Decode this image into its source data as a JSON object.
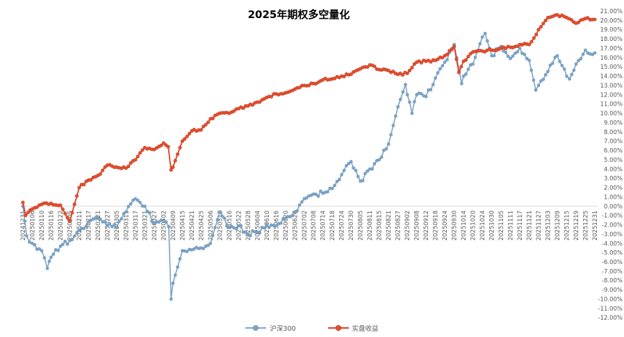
{
  "chart": {
    "background": "#FFFFFF",
    "zero_line_color": "#D9D9D9",
    "y_axis": {
      "max": 21,
      "min": -12,
      "step": 1,
      "decimals": 2,
      "suffix": "%",
      "label_color": "#595959"
    },
    "x_axis": {
      "label_color": "#595959"
    }
  },
  "chart_data": {
    "type": "line",
    "title": "2025年期权多空量化",
    "xlabel": "",
    "ylabel": "",
    "units": "percent",
    "ylim": [
      -12,
      21
    ],
    "y_tick_step": 1,
    "grid": "zero-axis-only",
    "legend_position": "bottom",
    "x": [
      "20241231",
      "20250106",
      "20250110",
      "20250116",
      "20250122",
      "20250205",
      "20250211",
      "20250217",
      "20250221",
      "20250227",
      "20250305",
      "20250311",
      "20250317",
      "20250321",
      "20250327",
      "20250402",
      "20250409",
      "20250415",
      "20250421",
      "20250425",
      "20250506",
      "20250512",
      "20250516",
      "20250522",
      "20250528",
      "20250604",
      "20250610",
      "20250616",
      "20250620",
      "20250626",
      "20250702",
      "20250708",
      "20250714",
      "20250718",
      "20250724",
      "20250730",
      "20250805",
      "20250811",
      "20250815",
      "20250821",
      "20250827",
      "20250902",
      "20250908",
      "20250912",
      "20250918",
      "20250924",
      "20250930",
      "20251014",
      "20251020",
      "20251024",
      "20251030",
      "20251105",
      "20251111",
      "20251117",
      "20251121",
      "20251127",
      "20251203",
      "20251209",
      "20251215",
      "20251219",
      "20251225",
      "20251231"
    ],
    "series": [
      {
        "name": "沪深300",
        "color": "#7FA7C9",
        "marker_fill": "#7FA7C9",
        "marker_edge": "#6690B5",
        "values": [
          0.0,
          -4.0,
          -4.8,
          -5.5,
          -4.3,
          -3.7,
          -2.6,
          -1.7,
          -1.2,
          -2.1,
          -2.3,
          -0.6,
          0.8,
          0.0,
          -1.8,
          -1.6,
          -8.3,
          -4.8,
          -4.7,
          -4.5,
          -4.0,
          -0.6,
          -2.3,
          -2.1,
          -3.0,
          -2.8,
          -2.0,
          -2.1,
          -1.3,
          -0.6,
          0.8,
          1.3,
          1.4,
          1.9,
          3.4,
          4.8,
          2.7,
          4.0,
          5.0,
          6.7,
          10.7,
          12.0,
          12.0,
          11.8,
          13.8,
          15.5,
          17.4,
          14.0,
          15.3,
          18.2,
          16.2,
          17.2,
          15.9,
          17.0,
          15.7,
          13.0,
          14.5,
          16.2,
          14.0,
          15.3,
          16.8,
          16.5
        ]
      },
      {
        "name": "实盘收益",
        "color": "#E23A22",
        "marker_fill": "#ED5130",
        "marker_edge": "#BC3418",
        "values": [
          0.4,
          -0.3,
          0.2,
          0.3,
          0.1,
          -1.6,
          2.0,
          2.8,
          3.3,
          4.4,
          4.2,
          4.1,
          5.0,
          6.3,
          6.1,
          6.8,
          4.2,
          7.0,
          8.1,
          8.2,
          9.4,
          10.0,
          10.0,
          10.5,
          10.8,
          11.2,
          11.7,
          12.1,
          12.2,
          12.6,
          13.0,
          13.2,
          13.6,
          13.7,
          14.0,
          14.2,
          14.8,
          15.2,
          14.7,
          14.6,
          14.2,
          14.3,
          15.5,
          15.6,
          15.7,
          16.2,
          17.2,
          15.6,
          16.6,
          16.7,
          16.8,
          17.0,
          17.1,
          17.4,
          17.4,
          19.0,
          20.3,
          20.6,
          20.3,
          19.7,
          20.2,
          20.1
        ]
      }
    ],
    "extra_points": [
      {
        "series": 0,
        "x_index": 0.4,
        "value": -3.2
      },
      {
        "series": 1,
        "x_index": 0.3,
        "value": -1.0
      },
      {
        "series": 0,
        "x_index": 2.6,
        "value": -6.7
      },
      {
        "series": 0,
        "x_index": 15.55,
        "value": -2.2
      },
      {
        "series": 0,
        "x_index": 15.8,
        "value": -10.0
      },
      {
        "series": 1,
        "x_index": 15.5,
        "value": 6.4
      },
      {
        "series": 1,
        "x_index": 15.8,
        "value": 3.9
      },
      {
        "series": 0,
        "x_index": 40.8,
        "value": 13.1
      },
      {
        "series": 0,
        "x_index": 41.5,
        "value": 10.0
      },
      {
        "series": 1,
        "x_index": 46.5,
        "value": 14.4
      },
      {
        "series": 0,
        "x_index": 46.8,
        "value": 13.2
      },
      {
        "series": 0,
        "x_index": 49.3,
        "value": 18.6
      },
      {
        "series": 0,
        "x_index": 54.7,
        "value": 12.5
      },
      {
        "series": 0,
        "x_index": 58.3,
        "value": 13.7
      }
    ]
  }
}
